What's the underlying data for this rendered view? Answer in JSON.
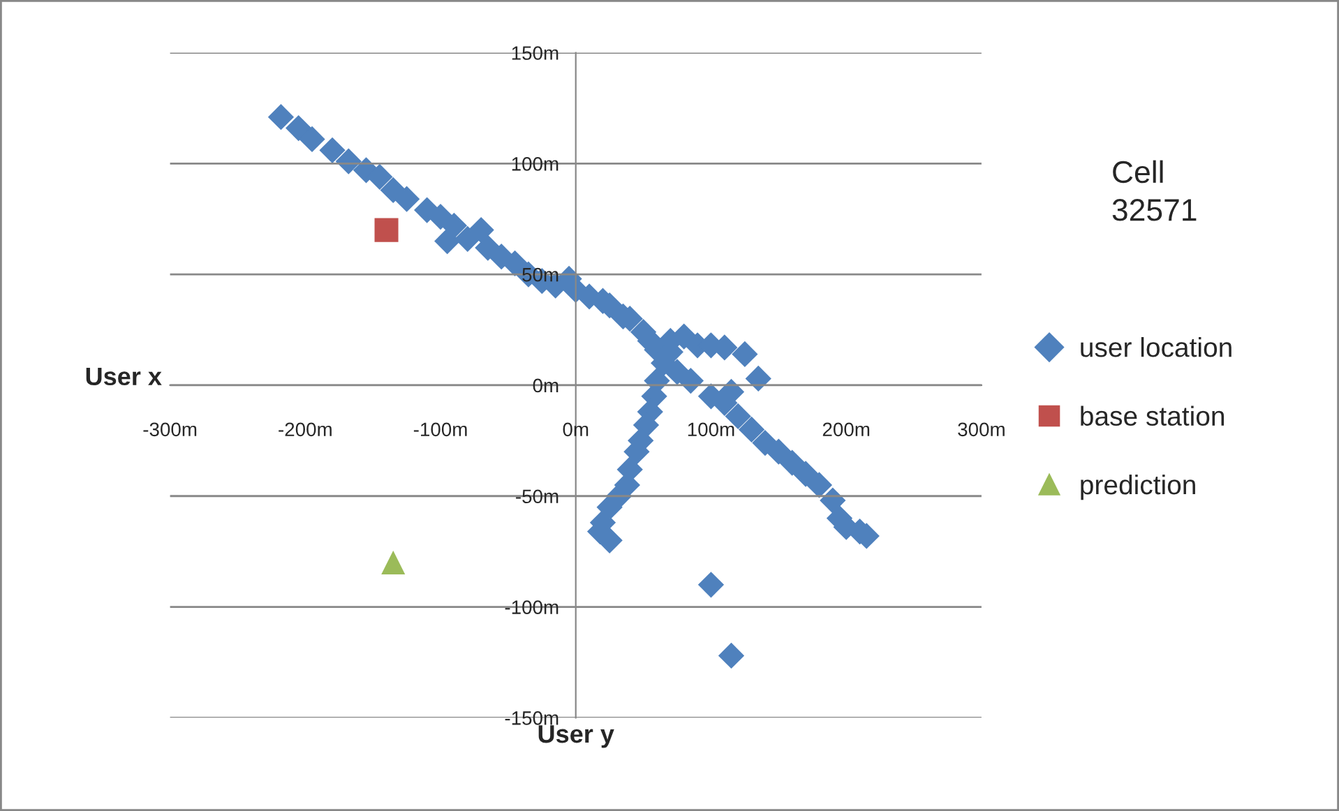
{
  "chart_data": {
    "type": "scatter",
    "xlabel": "User y",
    "ylabel": "User x",
    "annotations": [
      "Cell\n32571"
    ],
    "xlim": [
      -300,
      300
    ],
    "ylim": [
      -150,
      150
    ],
    "xticks": [
      {
        "value": -300,
        "label": "-300m"
      },
      {
        "value": -200,
        "label": "-200m"
      },
      {
        "value": -100,
        "label": "-100m"
      },
      {
        "value": 0,
        "label": "0m"
      },
      {
        "value": 100,
        "label": "100m"
      },
      {
        "value": 200,
        "label": "200m"
      },
      {
        "value": 300,
        "label": "300m"
      }
    ],
    "yticks": [
      {
        "value": -150,
        "label": "-150m"
      },
      {
        "value": -100,
        "label": "-100m"
      },
      {
        "value": -50,
        "label": "-50m"
      },
      {
        "value": 0,
        "label": "0m"
      },
      {
        "value": 50,
        "label": "50m"
      },
      {
        "value": 100,
        "label": "100m"
      },
      {
        "value": 150,
        "label": "150m"
      }
    ],
    "grid": "y",
    "legend": "right",
    "series": [
      {
        "name": "user location",
        "color": "#4f81bd",
        "marker": "diamond",
        "x": [
          -218,
          -205,
          -195,
          -180,
          -168,
          -155,
          -145,
          -135,
          -125,
          -110,
          -100,
          -95,
          -90,
          -80,
          -70,
          -65,
          -55,
          -45,
          -35,
          -25,
          -15,
          -5,
          0,
          10,
          20,
          25,
          35,
          40,
          50,
          55,
          60,
          75,
          85,
          100,
          110,
          115,
          120,
          130,
          140,
          150,
          160,
          170,
          180,
          190,
          195,
          200,
          210,
          215,
          70,
          80,
          90,
          100,
          110,
          125,
          135,
          70,
          65,
          60,
          58,
          55,
          52,
          48,
          45,
          40,
          38,
          32,
          25,
          20,
          18,
          25,
          100,
          115
        ],
        "values": [
          121,
          116,
          111,
          106,
          101,
          97,
          94,
          88,
          84,
          79,
          76,
          65,
          72,
          66,
          70,
          62,
          58,
          55,
          50,
          47,
          45,
          48,
          43,
          40,
          38,
          36,
          31,
          30,
          24,
          20,
          16,
          6,
          2,
          -5,
          -8,
          -3,
          -14,
          -20,
          -26,
          -30,
          -35,
          -40,
          -45,
          -52,
          -60,
          -64,
          -66,
          -68,
          20,
          22,
          18,
          18,
          17,
          14,
          3,
          15,
          10,
          2,
          -5,
          -12,
          -18,
          -25,
          -30,
          -38,
          -45,
          -50,
          -55,
          -62,
          -66,
          -70,
          -90,
          -122
        ]
      },
      {
        "name": "base station",
        "color": "#c0504d",
        "marker": "square",
        "x": [
          -140
        ],
        "values": [
          70
        ]
      },
      {
        "name": "prediction",
        "color": "#9bbb59",
        "marker": "triangle",
        "x": [
          -135
        ],
        "values": [
          -80
        ]
      }
    ]
  }
}
